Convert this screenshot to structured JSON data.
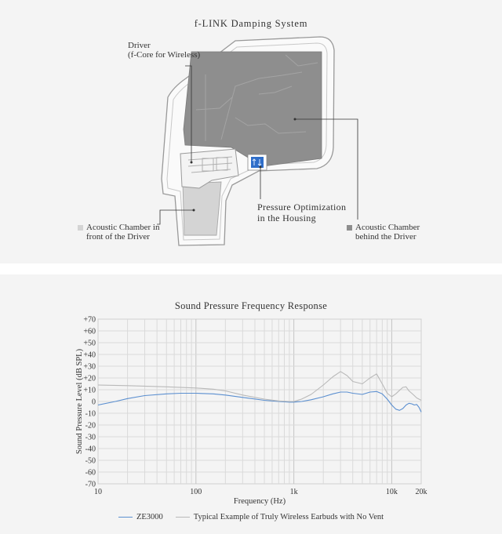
{
  "diagram": {
    "title": "f-LINK Damping System",
    "labels": {
      "driver_line1": "Driver",
      "driver_line2": "(f-Core for Wireless)",
      "pressure_line1": "Pressure Optimization",
      "pressure_line2": "in the Housing",
      "front_line1": "Acoustic Chamber in",
      "front_line2": "front of the Driver",
      "behind_line1": "Acoustic Chamber",
      "behind_line2": "behind the Driver"
    },
    "colors": {
      "front_chamber": "#d4d4d4",
      "behind_chamber": "#8e8e8e",
      "pressure_vent": "#2f6ec9"
    }
  },
  "chart_data": {
    "type": "line",
    "title": "Sound Pressure Frequency Response",
    "xlabel": "Frequency (Hz)",
    "ylabel": "Sound Pressure Level (dB SPL)",
    "xscale": "log",
    "xlim": [
      10,
      20000
    ],
    "ylim": [
      -70,
      70
    ],
    "x_ticks": [
      10,
      100,
      1000,
      10000,
      20000
    ],
    "x_tick_labels": [
      "10",
      "100",
      "1k",
      "10k",
      "20k"
    ],
    "y_ticks": [
      70,
      60,
      50,
      40,
      30,
      20,
      10,
      0,
      -10,
      -20,
      -30,
      -40,
      -50,
      -60,
      -70
    ],
    "y_tick_labels": [
      "+70",
      "+60",
      "+50",
      "+40",
      "+30",
      "+20",
      "+10",
      "0",
      "-10",
      "-20",
      "-30",
      "-40",
      "-50",
      "-60",
      "-70"
    ],
    "grid": true,
    "legend_position": "bottom",
    "series": [
      {
        "name": "ZE3000",
        "color": "#5b8fd0",
        "x": [
          10,
          15,
          20,
          30,
          50,
          70,
          100,
          150,
          200,
          300,
          500,
          700,
          900,
          1000,
          1200,
          1500,
          2000,
          2500,
          3000,
          3500,
          4000,
          5000,
          6000,
          7000,
          8000,
          9000,
          10000,
          11000,
          12000,
          13000,
          14000,
          15000,
          16000,
          17000,
          18000,
          19000,
          20000
        ],
        "y": [
          -3,
          0,
          2.5,
          5,
          6.5,
          7,
          7,
          6.5,
          5.5,
          3.5,
          1,
          0,
          -0.5,
          -0.5,
          0,
          1.5,
          4,
          6.5,
          8,
          8,
          7,
          6,
          8,
          8.5,
          6.5,
          2,
          -3,
          -6.5,
          -7.5,
          -6,
          -3,
          -1.5,
          -2,
          -3,
          -2.5,
          -5,
          -9
        ]
      },
      {
        "name": "Typical Example of Truly Wireless Earbuds with No Vent",
        "color": "#b9b9b9",
        "x": [
          10,
          20,
          50,
          100,
          150,
          200,
          300,
          500,
          700,
          900,
          1000,
          1200,
          1500,
          2000,
          2500,
          3000,
          3500,
          4000,
          5000,
          6000,
          7000,
          8000,
          9000,
          10000,
          11000,
          12000,
          13000,
          14000,
          15000,
          16000,
          17000,
          18000,
          19000,
          20000
        ],
        "y": [
          14,
          13.5,
          12.5,
          11.5,
          10.5,
          9,
          5.5,
          2,
          0.5,
          0,
          0,
          2,
          6,
          14,
          21,
          25.5,
          22,
          17,
          15,
          20,
          23.5,
          15,
          7,
          4,
          6.5,
          9.5,
          12,
          12.5,
          9,
          7,
          5,
          3,
          2,
          1
        ]
      }
    ]
  }
}
